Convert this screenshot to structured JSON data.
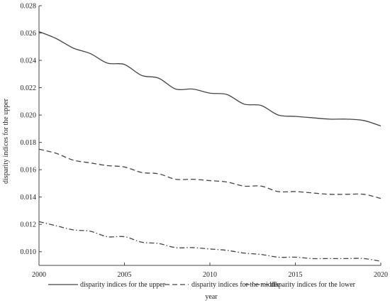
{
  "chart_data": {
    "type": "line",
    "title": "",
    "xlabel": "year",
    "ylabel": "disparity indices for the upper",
    "xlim": [
      2000,
      2020
    ],
    "ylim": [
      0.009,
      0.028
    ],
    "xticks": [
      "2000",
      "2005",
      "2010",
      "2015",
      "2020"
    ],
    "yticks": [
      "0.010",
      "0.012",
      "0.014",
      "0.016",
      "0.018",
      "0.020",
      "0.022",
      "0.024",
      "0.026",
      "0.028"
    ],
    "grid": false,
    "legend_position": "bottom",
    "x": [
      2000,
      2001,
      2002,
      2003,
      2004,
      2005,
      2006,
      2007,
      2008,
      2009,
      2010,
      2011,
      2012,
      2013,
      2014,
      2015,
      2016,
      2017,
      2018,
      2019,
      2020
    ],
    "series": [
      {
        "name": "disparity indices for the upper",
        "dash": "solid",
        "values": [
          0.0261,
          0.0256,
          0.0249,
          0.0245,
          0.0238,
          0.0237,
          0.0229,
          0.0227,
          0.0219,
          0.0219,
          0.0216,
          0.0215,
          0.0208,
          0.0207,
          0.02,
          0.0199,
          0.0198,
          0.0197,
          0.0197,
          0.0196,
          0.0192
        ]
      },
      {
        "name": "disparity indices for the middle",
        "dash": "dashed",
        "values": [
          0.0175,
          0.0172,
          0.0167,
          0.0165,
          0.0163,
          0.0162,
          0.0158,
          0.0157,
          0.0153,
          0.0153,
          0.0152,
          0.0151,
          0.0148,
          0.0148,
          0.0144,
          0.0144,
          0.0143,
          0.0142,
          0.0142,
          0.0142,
          0.0139
        ]
      },
      {
        "name": "disparity indices for the lower",
        "dash": "dashdot",
        "values": [
          0.0122,
          0.0119,
          0.0116,
          0.0115,
          0.0111,
          0.0111,
          0.0107,
          0.0106,
          0.0103,
          0.0103,
          0.0102,
          0.0101,
          0.0099,
          0.0098,
          0.0096,
          0.0096,
          0.0095,
          0.0095,
          0.0095,
          0.0095,
          0.0093
        ]
      }
    ]
  }
}
